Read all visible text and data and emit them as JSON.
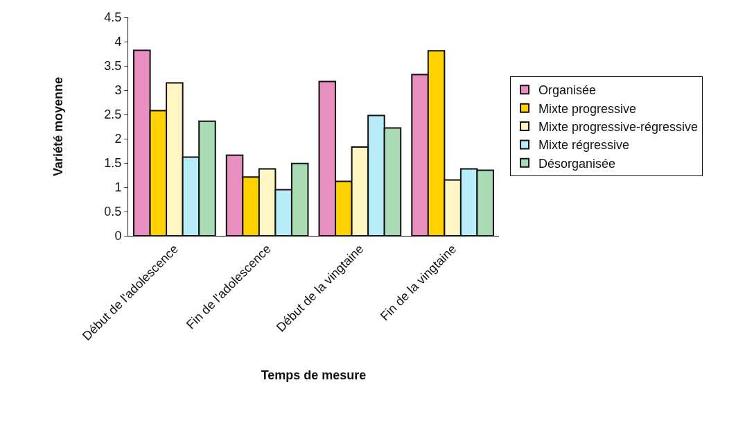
{
  "chart_data": {
    "type": "bar",
    "xlabel": "Temps de mesure",
    "ylabel": "Variété moyenne",
    "categories": [
      "Début de l'adolescence",
      "Fin de l'adolescence",
      "Début de la vingtaine",
      "Fin de la vingtaine"
    ],
    "series": [
      {
        "name": "Organisée",
        "color": "#e98fc0",
        "values": [
          3.82,
          1.66,
          3.18,
          3.32
        ]
      },
      {
        "name": "Mixte progressive",
        "color": "#ffd200",
        "values": [
          2.58,
          1.21,
          1.12,
          3.81
        ]
      },
      {
        "name": "Mixte progressive-régressive",
        "color": "#fff6c4",
        "values": [
          3.15,
          1.38,
          1.83,
          1.15
        ]
      },
      {
        "name": "Mixte régressive",
        "color": "#b8ecf8",
        "values": [
          1.62,
          0.95,
          2.48,
          1.38
        ]
      },
      {
        "name": "Désorganisée",
        "color": "#a9dcb4",
        "values": [
          2.36,
          1.49,
          2.22,
          1.35
        ]
      }
    ],
    "ylim": [
      0,
      4.5
    ],
    "yticks": [
      0,
      0.5,
      1,
      1.5,
      2,
      2.5,
      3,
      3.5,
      4,
      4.5
    ],
    "grid": false,
    "legend": "right"
  }
}
